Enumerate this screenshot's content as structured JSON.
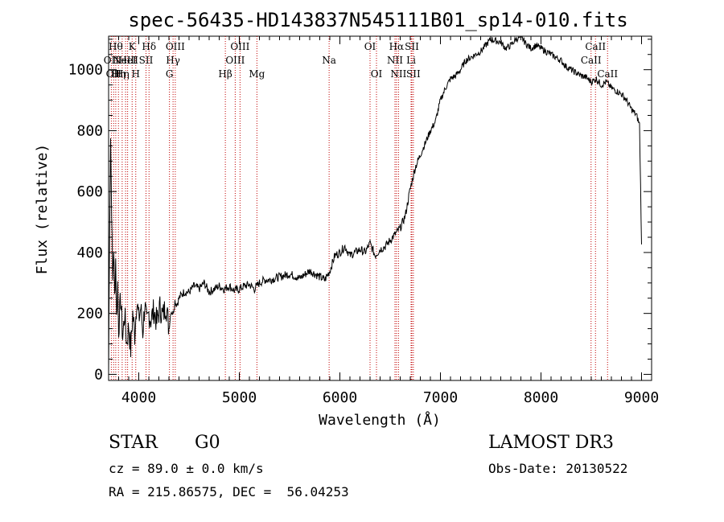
{
  "chart_data": {
    "type": "line",
    "title": "spec-56435-HD143837N545111B01_sp14-010.fits",
    "xlabel": "Wavelength (Å)",
    "ylabel": "Flux (relative)",
    "xlim": [
      3700,
      9100
    ],
    "ylim": [
      -20,
      1110
    ],
    "xticks": [
      4000,
      5000,
      6000,
      7000,
      8000,
      9000
    ],
    "yticks": [
      0,
      200,
      400,
      600,
      800,
      1000
    ],
    "series": [
      {
        "name": "flux",
        "x": [
          3700,
          3710,
          3720,
          3730,
          3740,
          3750,
          3760,
          3770,
          3780,
          3790,
          3800,
          3820,
          3840,
          3860,
          3880,
          3900,
          3920,
          3940,
          3960,
          3980,
          4000,
          4020,
          4040,
          4060,
          4080,
          4100,
          4120,
          4150,
          4180,
          4210,
          4240,
          4270,
          4300,
          4320,
          4340,
          4360,
          4380,
          4400,
          4420,
          4450,
          4500,
          4550,
          4600,
          4650,
          4700,
          4750,
          4800,
          4850,
          4900,
          4950,
          5000,
          5050,
          5100,
          5150,
          5200,
          5250,
          5300,
          5400,
          5500,
          5600,
          5700,
          5800,
          5850,
          5900,
          5950,
          6000,
          6050,
          6100,
          6150,
          6200,
          6250,
          6300,
          6350,
          6400,
          6450,
          6500,
          6550,
          6600,
          6650,
          6700,
          6750,
          6800,
          6850,
          6900,
          6950,
          7000,
          7050,
          7100,
          7150,
          7200,
          7250,
          7300,
          7350,
          7400,
          7450,
          7500,
          7550,
          7600,
          7650,
          7700,
          7750,
          7800,
          7850,
          7900,
          7950,
          8000,
          8050,
          8100,
          8150,
          8200,
          8250,
          8300,
          8350,
          8400,
          8450,
          8500,
          8550,
          8600,
          8650,
          8700,
          8750,
          8800,
          8850,
          8900,
          8950,
          8980,
          9000
        ],
        "y": [
          0,
          500,
          780,
          550,
          300,
          420,
          250,
          380,
          180,
          300,
          150,
          250,
          120,
          200,
          100,
          160,
          80,
          200,
          130,
          250,
          180,
          220,
          140,
          230,
          160,
          200,
          180,
          210,
          170,
          220,
          190,
          230,
          150,
          210,
          200,
          240,
          230,
          250,
          260,
          270,
          270,
          290,
          280,
          300,
          270,
          280,
          290,
          280,
          290,
          275,
          280,
          290,
          295,
          280,
          300,
          310,
          310,
          320,
          330,
          315,
          340,
          320,
          310,
          340,
          390,
          400,
          420,
          390,
          400,
          410,
          400,
          430,
          390,
          410,
          420,
          440,
          460,
          480,
          520,
          610,
          680,
          720,
          760,
          800,
          830,
          900,
          940,
          970,
          980,
          1000,
          1030,
          1040,
          1050,
          1060,
          1080,
          1100,
          1095,
          1090,
          1070,
          1080,
          1100,
          1110,
          1085,
          1070,
          1080,
          1070,
          1060,
          1050,
          1040,
          1030,
          1010,
          1000,
          990,
          980,
          975,
          960,
          970,
          950,
          960,
          940,
          930,
          920,
          900,
          870,
          850,
          820,
          420
        ]
      }
    ],
    "lines": [
      {
        "wave": 3727,
        "label": "OII",
        "row": 2
      },
      {
        "wave": 3750,
        "label": "OII",
        "row": 3
      },
      {
        "wave": 3771,
        "label": "Hθ",
        "row": 1
      },
      {
        "wave": 3798,
        "label": "Hη",
        "row": 3
      },
      {
        "wave": 3835,
        "label": "Hη",
        "row": 3
      },
      {
        "wave": 3869,
        "label": "NeIII",
        "row": 2
      },
      {
        "wave": 3889,
        "label": "HeI",
        "row": 2
      },
      {
        "wave": 3934,
        "label": "K",
        "row": 1
      },
      {
        "wave": 3970,
        "label": "H",
        "row": 3
      },
      {
        "wave": 4072,
        "label": "SII",
        "row": 2
      },
      {
        "wave": 4102,
        "label": "Hδ",
        "row": 1
      },
      {
        "wave": 4305,
        "label": "G",
        "row": 3
      },
      {
        "wave": 4341,
        "label": "Hγ",
        "row": 2
      },
      {
        "wave": 4363,
        "label": "OIII",
        "row": 1
      },
      {
        "wave": 4861,
        "label": "Hβ",
        "row": 3
      },
      {
        "wave": 4959,
        "label": "OIII",
        "row": 2
      },
      {
        "wave": 5007,
        "label": "OIII",
        "row": 1
      },
      {
        "wave": 5175,
        "label": "Mg",
        "row": 3
      },
      {
        "wave": 5893,
        "label": "Na",
        "row": 2
      },
      {
        "wave": 6300,
        "label": "OI",
        "row": 1
      },
      {
        "wave": 6364,
        "label": "OI",
        "row": 3
      },
      {
        "wave": 6548,
        "label": "NII",
        "row": 2
      },
      {
        "wave": 6563,
        "label": "Hα",
        "row": 1
      },
      {
        "wave": 6583,
        "label": "NII",
        "row": 3
      },
      {
        "wave": 6708,
        "label": "Li",
        "row": 2
      },
      {
        "wave": 6716,
        "label": "SII",
        "row": 1
      },
      {
        "wave": 6731,
        "label": "SII",
        "row": 3
      },
      {
        "wave": 8498,
        "label": "CaII",
        "row": 2
      },
      {
        "wave": 8542,
        "label": "CaII",
        "row": 1
      },
      {
        "wave": 8662,
        "label": "CaII",
        "row": 3
      }
    ]
  },
  "info": {
    "object_class": "STAR",
    "subclass": "G0",
    "redshift": "cz = 89.0 ± 0.0 km/s",
    "coords": "RA = 215.86575, DEC =  56.04253",
    "survey": "LAMOST DR3",
    "obs_date": "Obs-Date: 20130522"
  }
}
